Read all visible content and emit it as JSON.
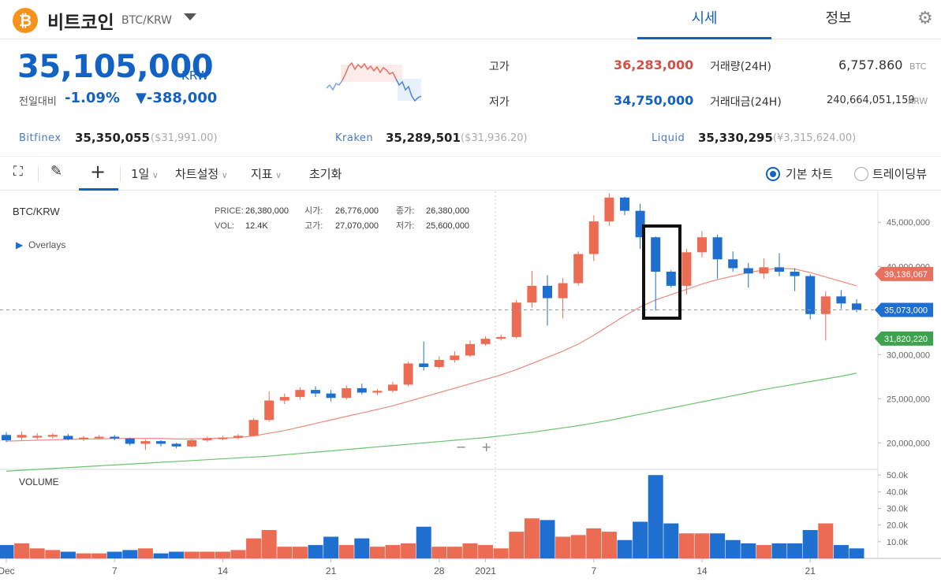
{
  "header": {
    "coin_icon": "bitcoin-icon",
    "coin_icon_glyph": "₿",
    "coin_name": "비트코인",
    "coin_pair": "BTC/KRW",
    "tabs": [
      {
        "label": "시세",
        "active": true
      },
      {
        "label": "정보",
        "active": false
      }
    ],
    "settings_icon": "gear-icon"
  },
  "price": {
    "current": "35,105,000",
    "unit": "KRW",
    "change_label": "전일대비",
    "change_pct": "-1.09%",
    "change_abs": "▼-388,000"
  },
  "stats": {
    "high_label": "고가",
    "high": "36,283,000",
    "low_label": "저가",
    "low": "34,750,000",
    "volume_label": "거래량(24H)",
    "volume": "6,757.860",
    "volume_unit": "BTC",
    "amount_label": "거래대금(24H)",
    "amount": "240,664,051,159",
    "amount_unit": "KRW"
  },
  "exchanges": [
    {
      "name": "Bitfinex",
      "price": "35,350,055",
      "usd": "($31,991.00)"
    },
    {
      "name": "Kraken",
      "price": "35,289,501",
      "usd": "($31,936.20)"
    },
    {
      "name": "Liquid",
      "price": "35,330,295",
      "usd": "(¥3,315,624.00)"
    }
  ],
  "toolbar": {
    "interval": "1일",
    "chart_settings": "차트설정",
    "indicators": "지표",
    "reset": "초기화",
    "basic_chart": "기본 차트",
    "tradingview": "트레이딩뷰",
    "basic_selected": true
  },
  "chart_data": {
    "type": "candlestick",
    "pair_label": "BTC/KRW",
    "overlays_label": "Overlays",
    "ohlc_info": {
      "price_label": "PRICE:",
      "price": "26,380,000",
      "vol_label": "VOL:",
      "vol": "12.4K",
      "open_label": "시가:",
      "open": "26,776,000",
      "high_label": "고가:",
      "high": "27,070,000",
      "close_label": "종가:",
      "close": "26,380,000",
      "low_label": "저가:",
      "low": "25,600,000"
    },
    "volume_label": "VOLUME",
    "x_ticks": [
      "Dec",
      "7",
      "14",
      "21",
      "28",
      "2021",
      "7",
      "14",
      "21"
    ],
    "y_ticks": [
      "45,000,000",
      "40,000,000",
      "35,000,000",
      "30,000,000",
      "25,000,000",
      "20,000,000"
    ],
    "vol_ticks": [
      "50.0k",
      "40.0k",
      "30.0k",
      "20.0k",
      "10.0k"
    ],
    "ylim": [
      17000000,
      48500000
    ],
    "vol_lim": [
      0,
      52
    ],
    "price_tags": [
      {
        "value": 39136067,
        "label": "39,136,067",
        "color": "#e8705f"
      },
      {
        "value": 35073000,
        "label": "35,073,000",
        "color": "#1e6fd0"
      },
      {
        "value": 31820220,
        "label": "31,820,220",
        "color": "#3fa34d"
      }
    ],
    "up_color": "#ec6b53",
    "down_color": "#1e6fd0",
    "ma_short_color": "#ef8a7c",
    "ma_long_color": "#6cc46c",
    "candles": [
      [
        20900000,
        20300000,
        21200000,
        20100000,
        8
      ],
      [
        20600000,
        20900000,
        21300000,
        20300000,
        9
      ],
      [
        20600000,
        20800000,
        21100000,
        20400000,
        6
      ],
      [
        20700000,
        20900000,
        21100000,
        20500000,
        5
      ],
      [
        20800000,
        20400000,
        21000000,
        20300000,
        4
      ],
      [
        20400000,
        20600000,
        20800000,
        20200000,
        3
      ],
      [
        20600000,
        20700000,
        20900000,
        20400000,
        3
      ],
      [
        20700000,
        20500000,
        20900000,
        20300000,
        4
      ],
      [
        20500000,
        19900000,
        20600000,
        19700000,
        5
      ],
      [
        19900000,
        20200000,
        20400000,
        19200000,
        6
      ],
      [
        20200000,
        19900000,
        20300000,
        19600000,
        3
      ],
      [
        19900000,
        19600000,
        20000000,
        19400000,
        4
      ],
      [
        19600000,
        20300000,
        20500000,
        19500000,
        4
      ],
      [
        20300000,
        20500000,
        20700000,
        20100000,
        4
      ],
      [
        20500000,
        20600000,
        20800000,
        20300000,
        4
      ],
      [
        20600000,
        20800000,
        21000000,
        20400000,
        5
      ],
      [
        20800000,
        22600000,
        22800000,
        20700000,
        12
      ],
      [
        22600000,
        24800000,
        25800000,
        22400000,
        17
      ],
      [
        24800000,
        25200000,
        25600000,
        24400000,
        7
      ],
      [
        25200000,
        26000000,
        26300000,
        24900000,
        7
      ],
      [
        26000000,
        25600000,
        26400000,
        25200000,
        8
      ],
      [
        25600000,
        25100000,
        26000000,
        24700000,
        13
      ],
      [
        25100000,
        26200000,
        26500000,
        24900000,
        8
      ],
      [
        26200000,
        25700000,
        26700000,
        25500000,
        12
      ],
      [
        25700000,
        25900000,
        26100000,
        25400000,
        7
      ],
      [
        25900000,
        26600000,
        26900000,
        25700000,
        8
      ],
      [
        26600000,
        29000000,
        29200000,
        26400000,
        9
      ],
      [
        29000000,
        28600000,
        31500000,
        28200000,
        19
      ],
      [
        28600000,
        29400000,
        29800000,
        28400000,
        7
      ],
      [
        29400000,
        29900000,
        30400000,
        29100000,
        7
      ],
      [
        29900000,
        31200000,
        31600000,
        29700000,
        9
      ],
      [
        31200000,
        31800000,
        32100000,
        31000000,
        8
      ],
      [
        31800000,
        32000000,
        32300000,
        31600000,
        6
      ],
      [
        32000000,
        35900000,
        36200000,
        31800000,
        16
      ],
      [
        35900000,
        37800000,
        39500000,
        35300000,
        24
      ],
      [
        37800000,
        36400000,
        39000000,
        33300000,
        23
      ],
      [
        36400000,
        38100000,
        38700000,
        34100000,
        13
      ],
      [
        38100000,
        41400000,
        41700000,
        37800000,
        14
      ],
      [
        41400000,
        45100000,
        45800000,
        40600000,
        18
      ],
      [
        45100000,
        47800000,
        48300000,
        44600000,
        16
      ],
      [
        47800000,
        46300000,
        47900000,
        45800000,
        11
      ],
      [
        46300000,
        43300000,
        47100000,
        42000000,
        22
      ],
      [
        43300000,
        39400000,
        43400000,
        35000000,
        50
      ],
      [
        39400000,
        37800000,
        39600000,
        37600000,
        21
      ],
      [
        37800000,
        41600000,
        42000000,
        36800000,
        15
      ],
      [
        41600000,
        43300000,
        44000000,
        41000000,
        15
      ],
      [
        43300000,
        40800000,
        43600000,
        38600000,
        15
      ],
      [
        40800000,
        39800000,
        41700000,
        39400000,
        11
      ],
      [
        39800000,
        39200000,
        40400000,
        37600000,
        9
      ],
      [
        39200000,
        39900000,
        40900000,
        38600000,
        8
      ],
      [
        39900000,
        39400000,
        41500000,
        38900000,
        9
      ],
      [
        39400000,
        38900000,
        39800000,
        37200000,
        9
      ],
      [
        38900000,
        34600000,
        39100000,
        34000000,
        17
      ],
      [
        34600000,
        36600000,
        37200000,
        31600000,
        21
      ],
      [
        36600000,
        35800000,
        37300000,
        35200000,
        8
      ],
      [
        35800000,
        35100000,
        36300000,
        34800000,
        6
      ]
    ],
    "ma_short": [
      20200000,
      20250000,
      20300000,
      20350000,
      20400000,
      20450000,
      20450000,
      20500000,
      20500000,
      20500000,
      20500000,
      20450000,
      20450000,
      20500000,
      20550000,
      20600000,
      20800000,
      21100000,
      21400000,
      21800000,
      22200000,
      22600000,
      23000000,
      23400000,
      23800000,
      24200000,
      24700000,
      25200000,
      25700000,
      26200000,
      26700000,
      27200000,
      27700000,
      28300000,
      29000000,
      29700000,
      30400000,
      31200000,
      32200000,
      33300000,
      34400000,
      35400000,
      36200000,
      36800000,
      37400000,
      38000000,
      38500000,
      38900000,
      39300000,
      39600000,
      39800000,
      39700000,
      39300000,
      38800000,
      38300000,
      37800000
    ],
    "ma_long": [
      16800000,
      16900000,
      17000000,
      17100000,
      17200000,
      17300000,
      17400000,
      17500000,
      17600000,
      17700000,
      17800000,
      17900000,
      18000000,
      18100000,
      18200000,
      18300000,
      18400000,
      18500000,
      18650000,
      18800000,
      18950000,
      19100000,
      19250000,
      19400000,
      19550000,
      19700000,
      19850000,
      20000000,
      20150000,
      20300000,
      20450000,
      20600000,
      20800000,
      21000000,
      21200000,
      21450000,
      21700000,
      21950000,
      22250000,
      22550000,
      22900000,
      23250000,
      23600000,
      23950000,
      24300000,
      24650000,
      25000000,
      25350000,
      25700000,
      26050000,
      26350000,
      26650000,
      26950000,
      27250000,
      27550000,
      27900000
    ]
  }
}
